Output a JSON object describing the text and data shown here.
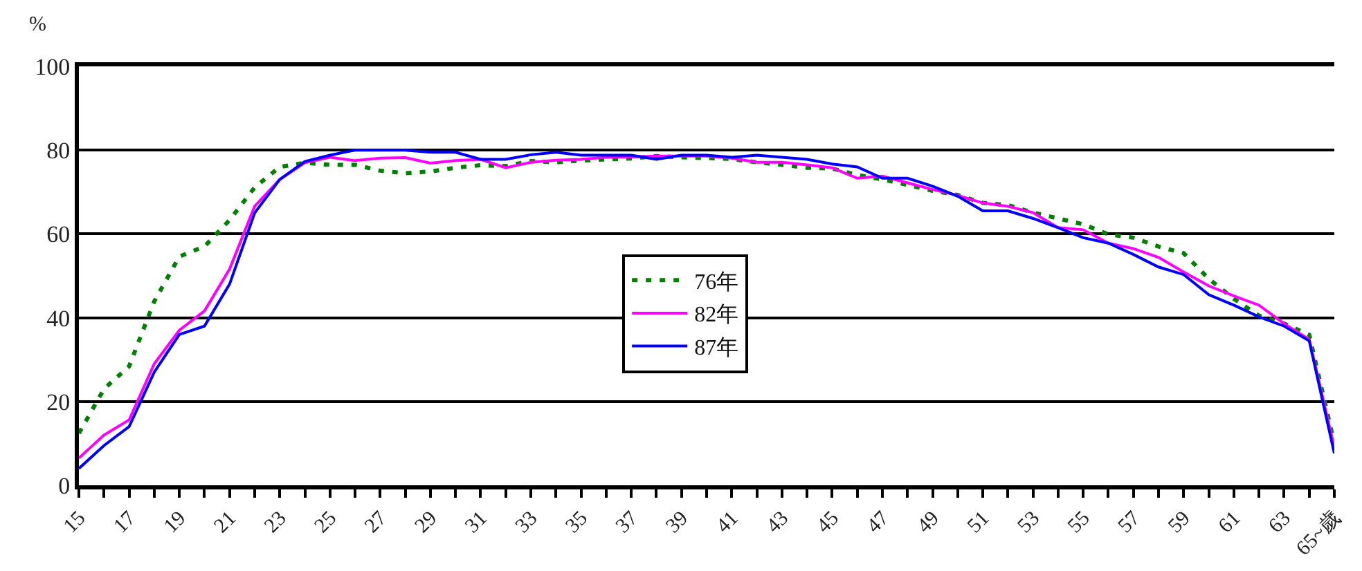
{
  "chart_data": {
    "type": "line",
    "ylabel": "%",
    "categories": [
      "15",
      null,
      "17",
      null,
      "19",
      null,
      "21",
      null,
      "23",
      null,
      "25",
      null,
      "27",
      null,
      "29",
      null,
      "31",
      null,
      "33",
      null,
      "35",
      null,
      "37",
      null,
      "39",
      null,
      "41",
      null,
      "43",
      null,
      "45",
      null,
      "47",
      null,
      "49",
      null,
      "51",
      null,
      "53",
      null,
      "55",
      null,
      "57",
      null,
      "59",
      null,
      "61",
      null,
      "63",
      null,
      "65~歲"
    ],
    "ylim": [
      0,
      100
    ],
    "yticks": [
      0,
      20,
      40,
      60,
      80,
      100
    ],
    "grid": "y",
    "legend": "center",
    "series": [
      {
        "name": "76年",
        "color": "#008000",
        "line_style": "dotted",
        "values": [
          12.4,
          23,
          28.4,
          43.9,
          54.6,
          57,
          63.3,
          71.1,
          76,
          77,
          76.5,
          76.5,
          75.1,
          74.5,
          74.9,
          75.8,
          76.4,
          76.2,
          77.4,
          77.1,
          77.5,
          77.8,
          78,
          78.6,
          78.3,
          78.1,
          77.9,
          77.1,
          76.5,
          75.8,
          75.6,
          74.1,
          73,
          71.7,
          70.3,
          69.3,
          67.4,
          66.9,
          65.1,
          63.7,
          62.3,
          59.9,
          59.1,
          57,
          55.4,
          49.3,
          44.5,
          40.5,
          38.6,
          35.9,
          10
        ]
      },
      {
        "name": "82年",
        "color": "#ff00ff",
        "line_style": "solid",
        "values": [
          6.5,
          12,
          15.6,
          29,
          37,
          41.6,
          51.6,
          66.6,
          73,
          77,
          78.3,
          77.5,
          78.1,
          78.2,
          76.9,
          77.5,
          77.8,
          75.8,
          77.1,
          77.6,
          77.8,
          78.3,
          78.4,
          78.6,
          78.6,
          78.6,
          78.1,
          77.1,
          77.1,
          76.5,
          75.8,
          73.3,
          73.8,
          72.2,
          70.6,
          69.2,
          67.4,
          66.6,
          65.1,
          61.5,
          61,
          57.8,
          56.5,
          54.4,
          50.9,
          47.6,
          45.2,
          43,
          38.6,
          34.8,
          9
        ]
      },
      {
        "name": "87年",
        "color": "#0000ff",
        "line_style": "solid",
        "values": [
          4,
          9.5,
          14,
          27,
          36,
          38,
          48,
          65,
          73,
          77.3,
          78.8,
          80,
          80,
          80,
          79.5,
          79.5,
          77.8,
          77.8,
          78.9,
          79.5,
          78.8,
          78.8,
          78.8,
          77.8,
          78.8,
          78.8,
          78.3,
          78.8,
          78.3,
          77.8,
          76.7,
          76,
          73.3,
          73.3,
          71.4,
          69,
          65.5,
          65.5,
          63.7,
          61.5,
          59.1,
          57.8,
          55.1,
          52.1,
          50.3,
          45.5,
          43,
          40.2,
          38,
          34.5,
          7.6
        ]
      }
    ]
  }
}
